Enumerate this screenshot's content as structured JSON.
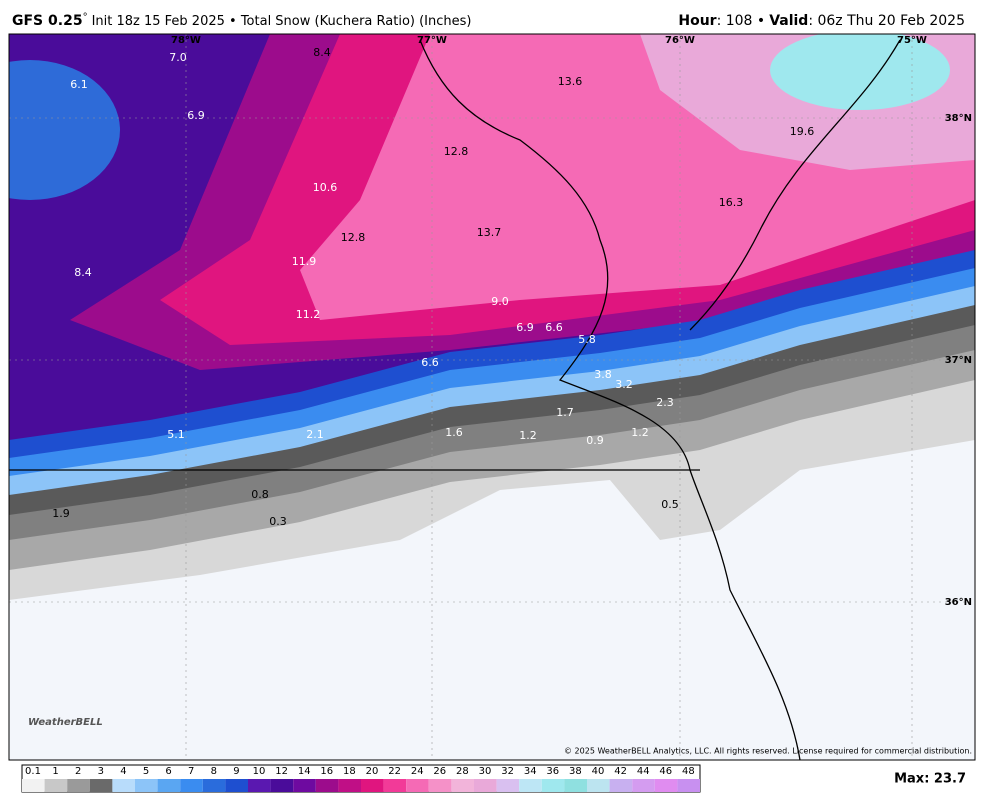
{
  "header": {
    "model": "GFS 0.25",
    "degree": "°",
    "title": "Init 18z 15 Feb 2025 • Total Snow (Kuchera Ratio) (Inches)",
    "hour_label": "Hour",
    "hour_value": ": 108 •",
    "valid_label": "Valid",
    "valid_value": ": 06z Thu 20 Feb 2025"
  },
  "map": {
    "longitudes": [
      "78°W",
      "77°W",
      "76°W",
      "75°W"
    ],
    "latitudes": [
      "38°N",
      "37°N",
      "36°N"
    ],
    "labels": [
      "7.0",
      "8.4",
      "13.6",
      "6.1",
      "6.9",
      "19.6",
      "12.8",
      "10.6",
      "16.3",
      "12.8",
      "13.7",
      "11.9",
      "8.4",
      "9.0",
      "11.2",
      "6.9",
      "6.6",
      "5.8",
      "6.6",
      "3.8",
      "3.2",
      "2.3",
      "1.7",
      "5.1",
      "2.1",
      "1.6",
      "1.2",
      "0.9",
      "1.2",
      "0.8",
      "0.5",
      "1.9",
      "0.3"
    ],
    "logo": "WeatherBELL",
    "copyright": "© 2025 WeatherBELL Analytics, LLC. All rights reserved. License required for commercial distribution."
  },
  "colorbar": {
    "labels": [
      "0.1",
      "1",
      "2",
      "3",
      "4",
      "5",
      "6",
      "7",
      "8",
      "9",
      "10",
      "12",
      "14",
      "16",
      "18",
      "20",
      "22",
      "24",
      "26",
      "28",
      "30",
      "32",
      "34",
      "36",
      "38",
      "40",
      "42",
      "44",
      "46",
      "48"
    ],
    "max": "Max: 23.7"
  }
}
